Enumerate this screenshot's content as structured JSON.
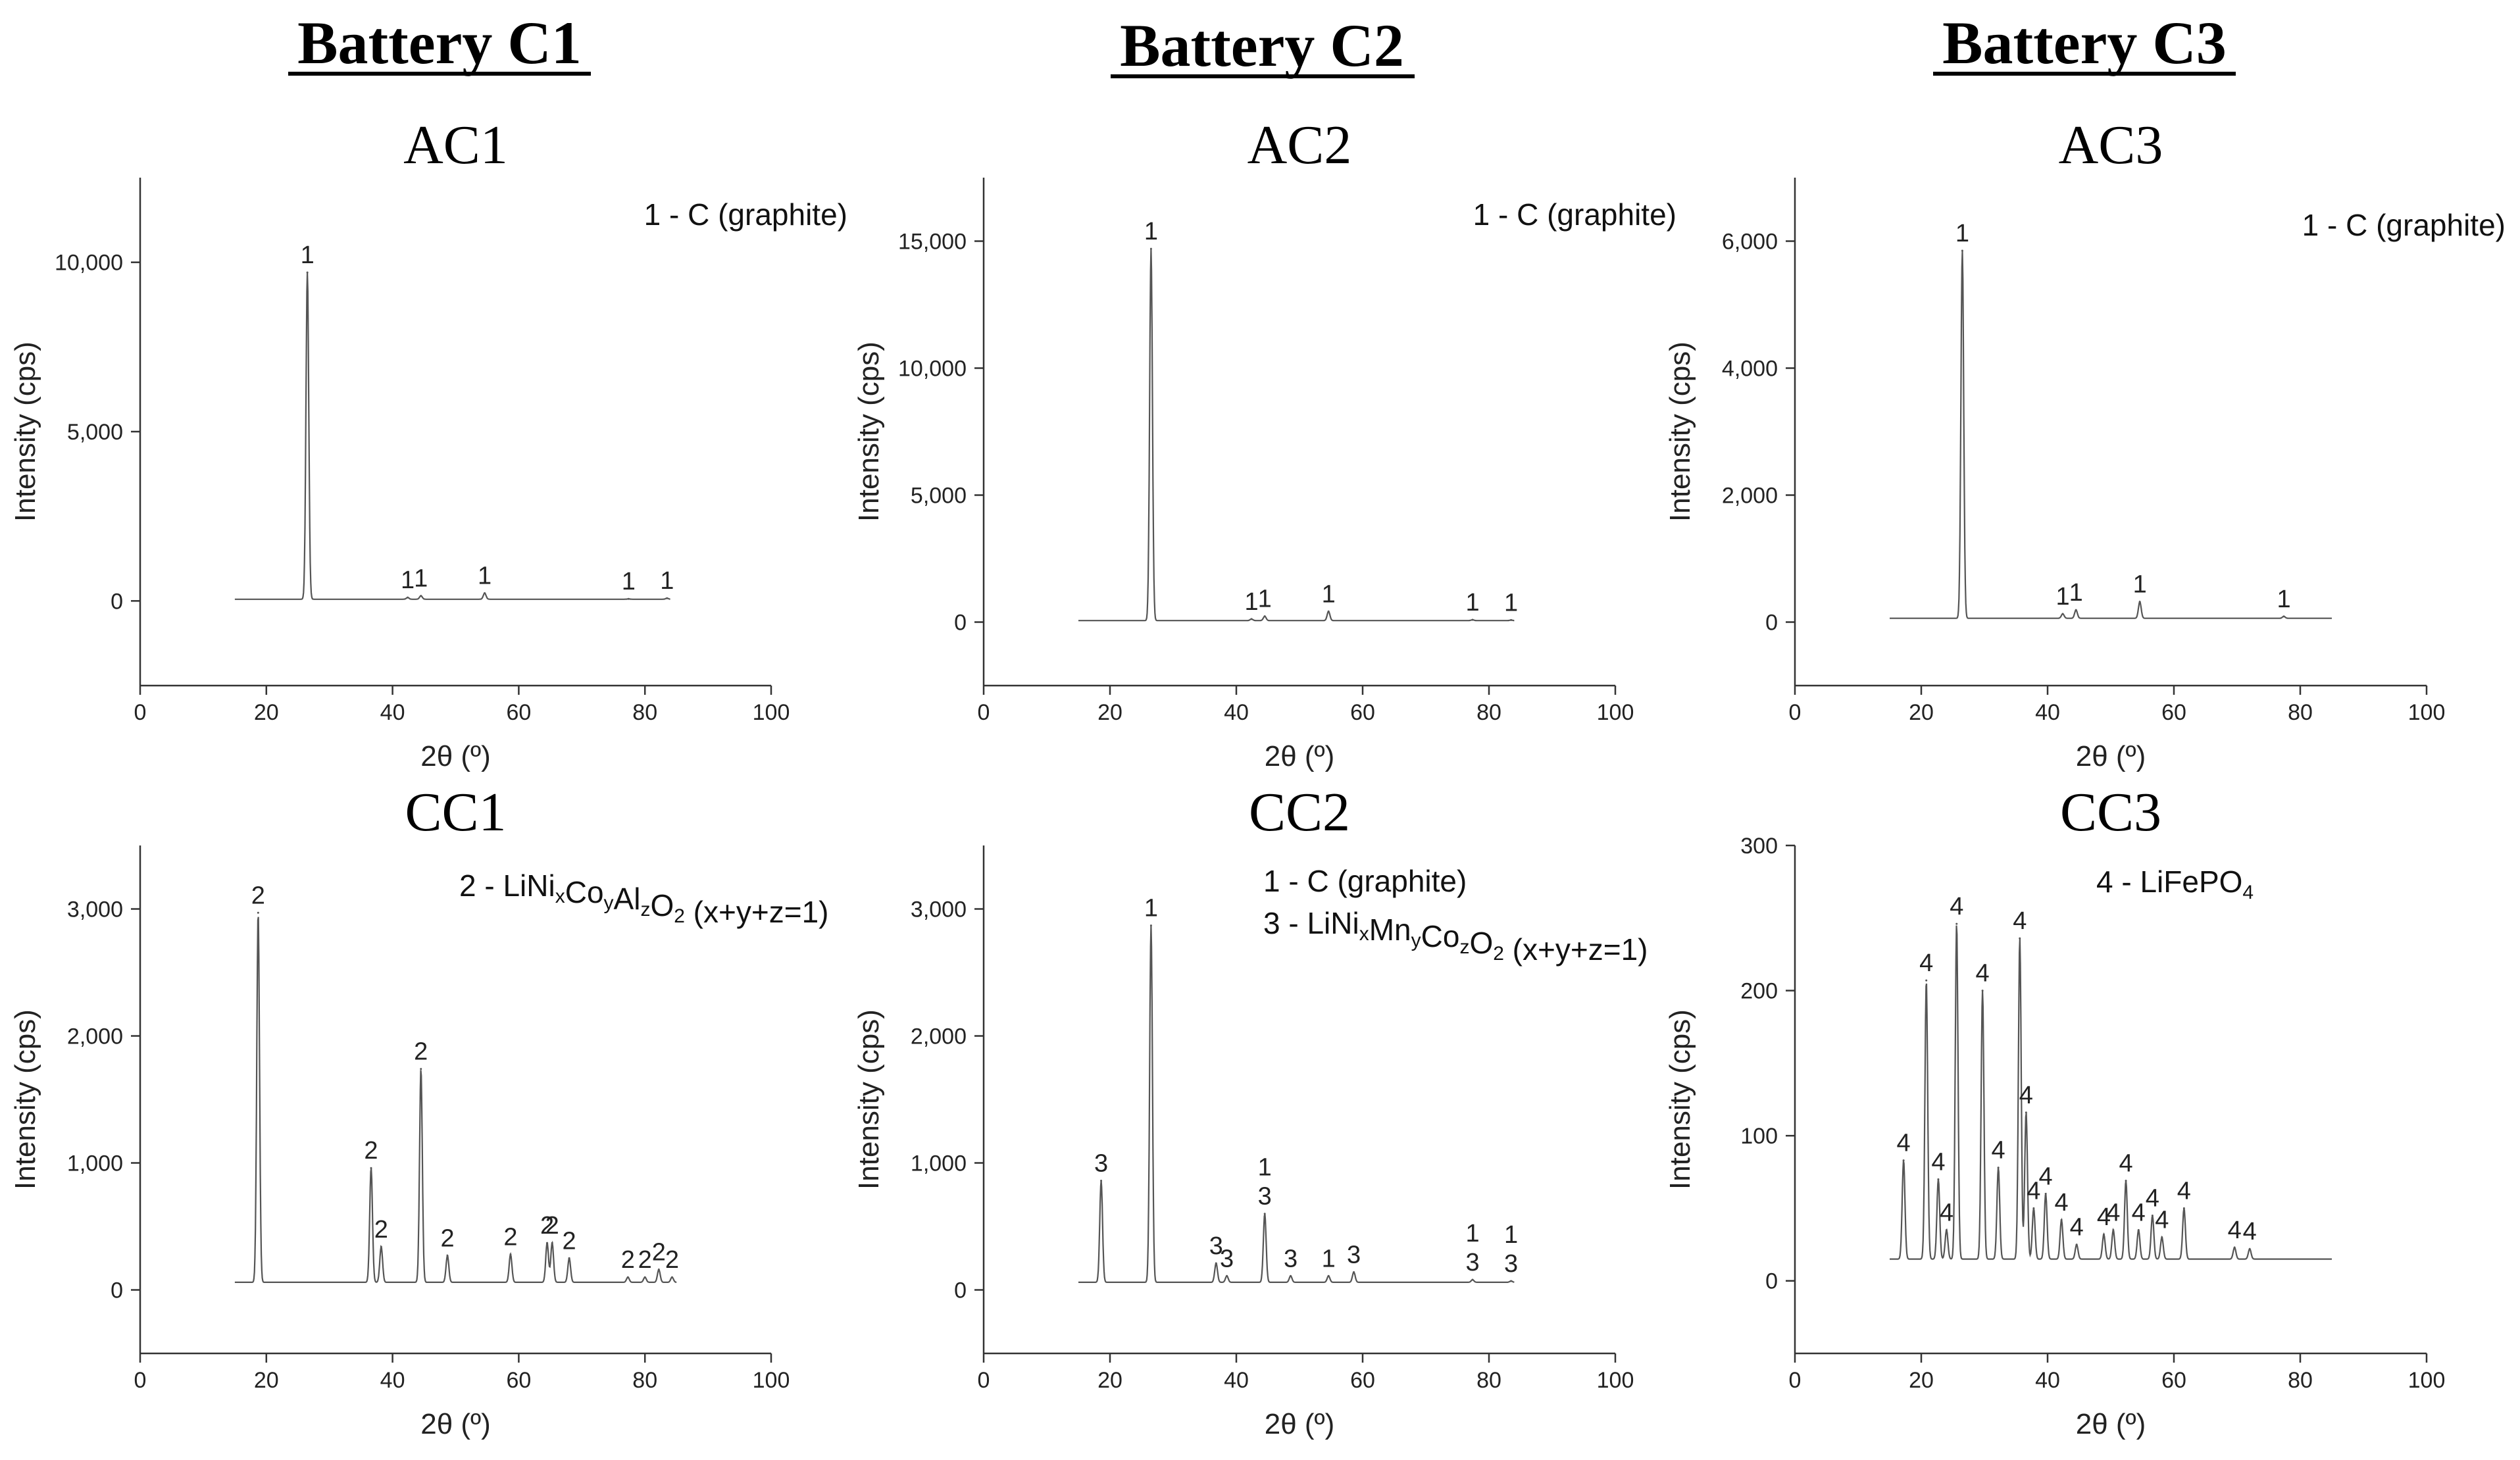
{
  "batteries": [
    {
      "title": "Battery C1"
    },
    {
      "title": "Battery C2"
    },
    {
      "title": "Battery C3"
    }
  ],
  "chart_data": [
    {
      "type": "line",
      "title": "AC1",
      "xlabel": "2θ (º)",
      "ylabel": "Intensity (cps)",
      "xlim": [
        0,
        100
      ],
      "ylim": [
        -2500,
        12500
      ],
      "xticks": [
        0,
        20,
        40,
        60,
        80,
        100
      ],
      "yticks": [
        0,
        5000,
        10000
      ],
      "ytick_labels": [
        "0",
        "5,000",
        "10,000"
      ],
      "legend": [
        {
          "text": "1 - C (graphite)"
        }
      ],
      "baseline": 50,
      "x_range": [
        15,
        84
      ],
      "peaks": [
        {
          "x": 26.5,
          "y": 9700,
          "labels": [
            "1"
          ]
        },
        {
          "x": 42.4,
          "y": 100,
          "labels": [
            "1"
          ]
        },
        {
          "x": 44.5,
          "y": 150,
          "labels": [
            "1"
          ]
        },
        {
          "x": 54.6,
          "y": 230,
          "labels": [
            "1"
          ]
        },
        {
          "x": 77.4,
          "y": 60,
          "labels": [
            "1"
          ]
        },
        {
          "x": 83.5,
          "y": 80,
          "labels": [
            "1"
          ]
        }
      ]
    },
    {
      "type": "line",
      "title": "AC2",
      "xlabel": "2θ (º)",
      "ylabel": "Intensity (cps)",
      "xlim": [
        0,
        100
      ],
      "ylim": [
        -2500,
        17500
      ],
      "xticks": [
        0,
        20,
        40,
        60,
        80,
        100
      ],
      "yticks": [
        0,
        5000,
        10000,
        15000
      ],
      "ytick_labels": [
        "0",
        "5,000",
        "10,000",
        "15,000"
      ],
      "legend": [
        {
          "text": "1 - C (graphite)"
        }
      ],
      "baseline": 60,
      "x_range": [
        15,
        84
      ],
      "peaks": [
        {
          "x": 26.5,
          "y": 14700,
          "labels": [
            "1"
          ]
        },
        {
          "x": 42.4,
          "y": 120,
          "labels": [
            "1"
          ]
        },
        {
          "x": 44.5,
          "y": 230,
          "labels": [
            "1"
          ]
        },
        {
          "x": 54.6,
          "y": 420,
          "labels": [
            "1"
          ]
        },
        {
          "x": 77.4,
          "y": 90,
          "labels": [
            "1"
          ]
        },
        {
          "x": 83.5,
          "y": 80,
          "labels": [
            "1"
          ]
        }
      ]
    },
    {
      "type": "line",
      "title": "AC3",
      "xlabel": "2θ (º)",
      "ylabel": "Intensity (cps)",
      "xlim": [
        0,
        100
      ],
      "ylim": [
        -1000,
        7000
      ],
      "xticks": [
        0,
        20,
        40,
        60,
        80,
        100
      ],
      "yticks": [
        0,
        2000,
        4000,
        6000
      ],
      "ytick_labels": [
        "0",
        "2,000",
        "4,000",
        "6,000"
      ],
      "legend": [
        {
          "text": "1 - C (graphite)"
        }
      ],
      "baseline": 60,
      "x_range": [
        15,
        85
      ],
      "peaks": [
        {
          "x": 26.5,
          "y": 5850,
          "labels": [
            "1"
          ]
        },
        {
          "x": 42.4,
          "y": 130,
          "labels": [
            "1"
          ]
        },
        {
          "x": 44.5,
          "y": 190,
          "labels": [
            "1"
          ]
        },
        {
          "x": 54.6,
          "y": 320,
          "labels": [
            "1"
          ]
        },
        {
          "x": 77.4,
          "y": 90,
          "labels": [
            "1"
          ]
        }
      ]
    },
    {
      "type": "line",
      "title": "CC1",
      "xlabel": "2θ (º)",
      "ylabel": "Intensity (cps)",
      "xlim": [
        0,
        100
      ],
      "ylim": [
        -500,
        3500
      ],
      "xticks": [
        0,
        20,
        40,
        60,
        80,
        100
      ],
      "yticks": [
        0,
        1000,
        2000,
        3000
      ],
      "ytick_labels": [
        "0",
        "1,000",
        "2,000",
        "3,000"
      ],
      "legend": [
        {
          "text": "2 - LiNi",
          "parts": [
            {
              "t": "2 - LiNi"
            },
            {
              "t": "x",
              "sub": true
            },
            {
              "t": "Co"
            },
            {
              "t": "y",
              "sub": true
            },
            {
              "t": "Al"
            },
            {
              "t": "z",
              "sub": true
            },
            {
              "t": "O"
            },
            {
              "t": "2",
              "sub": true
            },
            {
              "t": " (x+y+z=1)"
            }
          ]
        }
      ],
      "baseline": 60,
      "x_range": [
        15,
        85
      ],
      "peaks": [
        {
          "x": 18.7,
          "y": 2970,
          "labels": [
            "2"
          ]
        },
        {
          "x": 36.6,
          "y": 960,
          "labels": [
            "2"
          ]
        },
        {
          "x": 38.2,
          "y": 340,
          "labels": [
            "2"
          ]
        },
        {
          "x": 44.5,
          "y": 1740,
          "labels": [
            "2"
          ]
        },
        {
          "x": 48.7,
          "y": 270,
          "labels": [
            "2"
          ]
        },
        {
          "x": 58.7,
          "y": 280,
          "labels": [
            "2"
          ]
        },
        {
          "x": 64.5,
          "y": 370,
          "labels": [
            "2"
          ]
        },
        {
          "x": 65.3,
          "y": 370,
          "labels": [
            "2"
          ]
        },
        {
          "x": 68.0,
          "y": 250,
          "labels": [
            "2"
          ]
        },
        {
          "x": 77.3,
          "y": 100,
          "labels": [
            "2"
          ]
        },
        {
          "x": 80.0,
          "y": 100,
          "labels": [
            "2"
          ]
        },
        {
          "x": 82.2,
          "y": 160,
          "labels": [
            "2"
          ]
        },
        {
          "x": 84.3,
          "y": 100,
          "labels": [
            "2"
          ]
        }
      ]
    },
    {
      "type": "line",
      "title": "CC2",
      "xlabel": "2θ (º)",
      "ylabel": "Intensity (cps)",
      "xlim": [
        0,
        100
      ],
      "ylim": [
        -500,
        3500
      ],
      "xticks": [
        0,
        20,
        40,
        60,
        80,
        100
      ],
      "yticks": [
        0,
        1000,
        2000,
        3000
      ],
      "ytick_labels": [
        "0",
        "1,000",
        "2,000",
        "3,000"
      ],
      "legend": [
        {
          "text": "1 - C (graphite)"
        },
        {
          "text": "3 - LiNi",
          "parts": [
            {
              "t": "3 - LiNi"
            },
            {
              "t": "x",
              "sub": true
            },
            {
              "t": "Mn"
            },
            {
              "t": "y",
              "sub": true
            },
            {
              "t": "Co"
            },
            {
              "t": "z",
              "sub": true
            },
            {
              "t": "O"
            },
            {
              "t": "2",
              "sub": true
            },
            {
              "t": " (x+y+z=1)"
            }
          ]
        }
      ],
      "baseline": 60,
      "x_range": [
        15,
        84
      ],
      "peaks": [
        {
          "x": 18.6,
          "y": 860,
          "labels": [
            "3"
          ]
        },
        {
          "x": 26.5,
          "y": 2870,
          "labels": [
            "1"
          ]
        },
        {
          "x": 36.8,
          "y": 210,
          "labels": [
            "3"
          ]
        },
        {
          "x": 38.5,
          "y": 110,
          "labels": [
            "3"
          ]
        },
        {
          "x": 44.5,
          "y": 600,
          "labels": [
            "1",
            "3"
          ]
        },
        {
          "x": 48.6,
          "y": 110,
          "labels": [
            "3"
          ]
        },
        {
          "x": 54.6,
          "y": 110,
          "labels": [
            "1"
          ]
        },
        {
          "x": 58.6,
          "y": 140,
          "labels": [
            "3"
          ]
        },
        {
          "x": 77.4,
          "y": 80,
          "labels": [
            "1",
            "3"
          ]
        },
        {
          "x": 83.5,
          "y": 70,
          "labels": [
            "1",
            "3"
          ]
        }
      ]
    },
    {
      "type": "line",
      "title": "CC3",
      "xlabel": "2θ (º)",
      "ylabel": "Intensity (cps)",
      "xlim": [
        0,
        100
      ],
      "ylim": [
        -50,
        300
      ],
      "xticks": [
        0,
        20,
        40,
        60,
        80,
        100
      ],
      "yticks": [
        0,
        100,
        200,
        300
      ],
      "ytick_labels": [
        "0",
        "100",
        "200",
        "300"
      ],
      "legend": [
        {
          "text": "4 - LiFePO",
          "parts": [
            {
              "t": "4 - LiFePO"
            },
            {
              "t": "4",
              "sub": true
            }
          ]
        }
      ],
      "baseline": 15,
      "x_range": [
        15,
        85
      ],
      "peaks": [
        {
          "x": 17.2,
          "y": 83,
          "labels": [
            "4"
          ]
        },
        {
          "x": 20.8,
          "y": 207,
          "labels": [
            "4"
          ]
        },
        {
          "x": 22.7,
          "y": 70,
          "labels": [
            "4"
          ]
        },
        {
          "x": 24.0,
          "y": 35,
          "labels": [
            "4"
          ]
        },
        {
          "x": 25.6,
          "y": 246,
          "labels": [
            "4"
          ]
        },
        {
          "x": 29.7,
          "y": 200,
          "labels": [
            "4"
          ]
        },
        {
          "x": 32.2,
          "y": 78,
          "labels": [
            "4"
          ]
        },
        {
          "x": 35.6,
          "y": 236,
          "labels": [
            "4"
          ]
        },
        {
          "x": 36.6,
          "y": 116,
          "labels": [
            "4"
          ]
        },
        {
          "x": 37.8,
          "y": 50,
          "labels": [
            "4"
          ]
        },
        {
          "x": 39.7,
          "y": 60,
          "labels": [
            "4"
          ]
        },
        {
          "x": 42.2,
          "y": 42,
          "labels": [
            "4"
          ]
        },
        {
          "x": 44.6,
          "y": 25,
          "labels": [
            "4"
          ]
        },
        {
          "x": 48.9,
          "y": 32,
          "labels": [
            "4"
          ]
        },
        {
          "x": 50.4,
          "y": 35,
          "labels": [
            "4"
          ]
        },
        {
          "x": 52.4,
          "y": 69,
          "labels": [
            "4"
          ]
        },
        {
          "x": 54.4,
          "y": 35,
          "labels": [
            "4"
          ]
        },
        {
          "x": 56.6,
          "y": 45,
          "labels": [
            "4"
          ]
        },
        {
          "x": 58.1,
          "y": 30,
          "labels": [
            "4"
          ]
        },
        {
          "x": 61.6,
          "y": 50,
          "labels": [
            "4"
          ]
        },
        {
          "x": 69.6,
          "y": 23,
          "labels": [
            "4"
          ]
        },
        {
          "x": 72.0,
          "y": 22,
          "labels": [
            "4"
          ]
        }
      ]
    }
  ]
}
